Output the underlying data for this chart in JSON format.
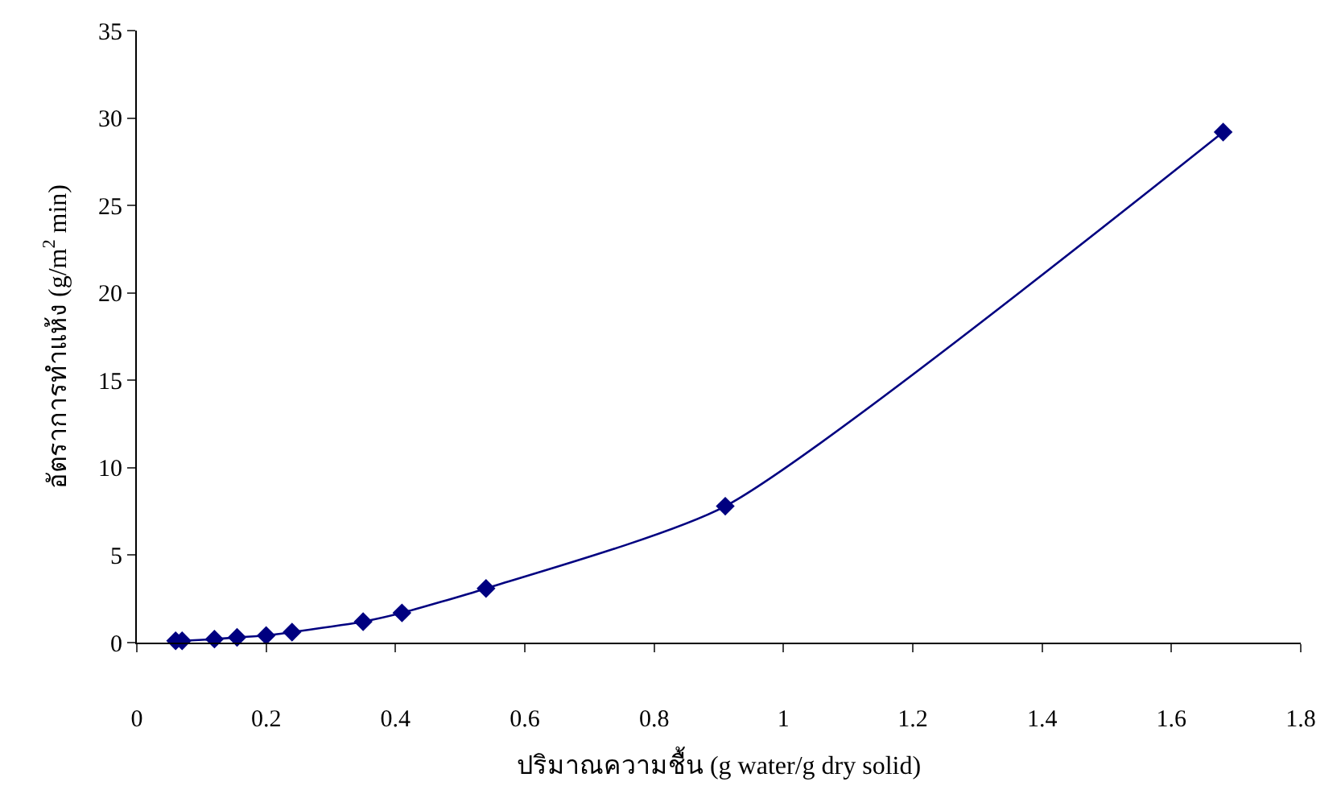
{
  "chart_data": {
    "type": "line",
    "xlabel": "ปริมาณความชื้น (g water/g dry solid)",
    "ylabel": "อัตราการทำแห้ง (g/m$^{2}$ min)",
    "x": [
      0.06,
      0.07,
      0.12,
      0.155,
      0.2,
      0.24,
      0.35,
      0.41,
      0.54,
      0.91,
      1.68
    ],
    "series": [
      {
        "color": "#000080",
        "values": [
          0.1,
          0.1,
          0.2,
          0.3,
          0.4,
          0.6,
          1.2,
          1.7,
          3.1,
          7.8,
          29.2
        ]
      }
    ],
    "xlim": [
      0,
      1.8
    ],
    "xticks": [
      0,
      0.2,
      0.4,
      0.6,
      0.8,
      1,
      1.2,
      1.4,
      1.6,
      1.8
    ],
    "ylim": [
      0,
      35
    ],
    "yticks": [
      0,
      5,
      10,
      15,
      20,
      25,
      30,
      35
    ],
    "legend": false,
    "marker": "diamond",
    "line_style": "solid"
  }
}
